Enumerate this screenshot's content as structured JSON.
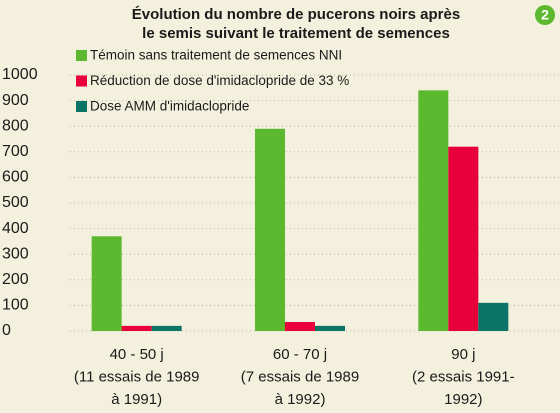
{
  "chart_data": {
    "type": "bar",
    "title": [
      "Évolution du nombre de pucerons noirs après",
      "le semis suivant le traitement de semences"
    ],
    "badge": "2",
    "categories": [
      [
        "40 - 50 j",
        "(11 essais de 1989",
        "à 1991)"
      ],
      [
        "60 - 70 j",
        "(7 essais de 1989",
        "à 1992)"
      ],
      [
        "90 j",
        "(2 essais 1991-",
        "1992)"
      ]
    ],
    "series": [
      {
        "name": "Témoin sans traitement de semences NNI",
        "color": "#5cb82e",
        "values": [
          370,
          790,
          940
        ]
      },
      {
        "name": "Réduction de dose d'imidaclopride de 33 %",
        "color": "#e8003d",
        "values": [
          20,
          35,
          720
        ]
      },
      {
        "name": "Dose AMM d'imidaclopride",
        "color": "#0a7566",
        "values": [
          20,
          20,
          110
        ]
      }
    ],
    "ylim": [
      0,
      1000
    ],
    "yticks": [
      0,
      100,
      200,
      300,
      400,
      500,
      600,
      700,
      800,
      900,
      1000
    ],
    "grid": true
  }
}
